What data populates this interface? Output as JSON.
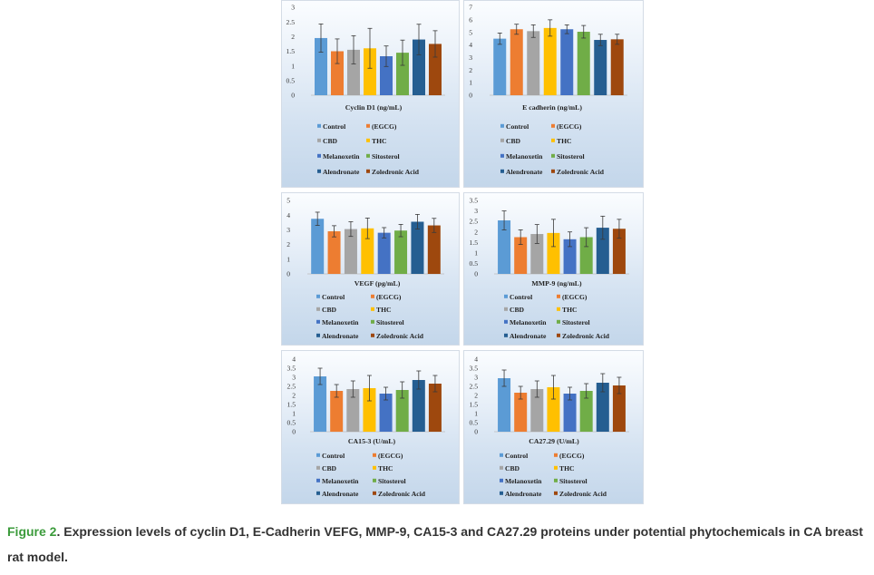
{
  "palette": [
    "#5b9bd5",
    "#ed7d31",
    "#a5a5a5",
    "#ffc000",
    "#4472c4",
    "#70ad47",
    "#255e91",
    "#9e480e"
  ],
  "chart_data": [
    {
      "type": "bar",
      "title": "Cyclin D1 (ng/mL)",
      "ylim": [
        0,
        3
      ],
      "yticks": [
        "0",
        "0.5",
        "1",
        "1.5",
        "2",
        "2.5",
        "3"
      ],
      "series": [
        {
          "name": "Control",
          "values": [
            1.95
          ],
          "errors": [
            0.48
          ]
        },
        {
          "name": "(EGCG)",
          "values": [
            1.5
          ],
          "errors": [
            0.42
          ]
        },
        {
          "name": "CBD",
          "values": [
            1.55
          ],
          "errors": [
            0.48
          ]
        },
        {
          "name": "THC",
          "values": [
            1.6
          ],
          "errors": [
            0.68
          ]
        },
        {
          "name": "Melanoxetin",
          "values": [
            1.33
          ],
          "errors": [
            0.35
          ]
        },
        {
          "name": "Sitosterol",
          "values": [
            1.45
          ],
          "errors": [
            0.43
          ]
        },
        {
          "name": "Alendronate",
          "values": [
            1.9
          ],
          "errors": [
            0.52
          ]
        },
        {
          "name": "Zoledronic Acid",
          "values": [
            1.75
          ],
          "errors": [
            0.45
          ]
        }
      ]
    },
    {
      "type": "bar",
      "title": "E cadherin (ng/mL)",
      "ylim": [
        0,
        7
      ],
      "yticks": [
        "0",
        "1",
        "2",
        "3",
        "4",
        "5",
        "6",
        "7"
      ],
      "series": [
        {
          "name": "Control",
          "values": [
            4.5
          ],
          "errors": [
            0.45
          ]
        },
        {
          "name": "(EGCG)",
          "values": [
            5.25
          ],
          "errors": [
            0.4
          ]
        },
        {
          "name": "CBD",
          "values": [
            5.1
          ],
          "errors": [
            0.5
          ]
        },
        {
          "name": "THC",
          "values": [
            5.35
          ],
          "errors": [
            0.65
          ]
        },
        {
          "name": "Melanoxetin",
          "values": [
            5.25
          ],
          "errors": [
            0.35
          ]
        },
        {
          "name": "Sitosterol",
          "values": [
            5.05
          ],
          "errors": [
            0.5
          ]
        },
        {
          "name": "Alendronate",
          "values": [
            4.4
          ],
          "errors": [
            0.45
          ]
        },
        {
          "name": "Zoledronic Acid",
          "values": [
            4.45
          ],
          "errors": [
            0.4
          ]
        }
      ]
    },
    {
      "type": "bar",
      "title": "VEGF (pg/mL)",
      "ylim": [
        0,
        5
      ],
      "yticks": [
        "0",
        "1",
        "2",
        "3",
        "4",
        "5"
      ],
      "series": [
        {
          "name": "Control",
          "values": [
            3.75
          ],
          "errors": [
            0.45
          ]
        },
        {
          "name": "(EGCG)",
          "values": [
            2.9
          ],
          "errors": [
            0.38
          ]
        },
        {
          "name": "CBD",
          "values": [
            3.05
          ],
          "errors": [
            0.5
          ]
        },
        {
          "name": "THC",
          "values": [
            3.1
          ],
          "errors": [
            0.7
          ]
        },
        {
          "name": "Melanoxetin",
          "values": [
            2.8
          ],
          "errors": [
            0.35
          ]
        },
        {
          "name": "Sitosterol",
          "values": [
            2.95
          ],
          "errors": [
            0.42
          ]
        },
        {
          "name": "Alendronate",
          "values": [
            3.55
          ],
          "errors": [
            0.5
          ]
        },
        {
          "name": "Zoledronic Acid",
          "values": [
            3.3
          ],
          "errors": [
            0.48
          ]
        }
      ]
    },
    {
      "type": "bar",
      "title": "MMP-9 (ng/mL)",
      "ylim": [
        0,
        3.5
      ],
      "yticks": [
        "0",
        "0.5",
        "1",
        "1.5",
        "2",
        "2.5",
        "3",
        "3.5"
      ],
      "series": [
        {
          "name": "Control",
          "values": [
            2.55
          ],
          "errors": [
            0.45
          ]
        },
        {
          "name": "(EGCG)",
          "values": [
            1.75
          ],
          "errors": [
            0.35
          ]
        },
        {
          "name": "CBD",
          "values": [
            1.9
          ],
          "errors": [
            0.45
          ]
        },
        {
          "name": "THC",
          "values": [
            1.95
          ],
          "errors": [
            0.65
          ]
        },
        {
          "name": "Melanoxetin",
          "values": [
            1.65
          ],
          "errors": [
            0.35
          ]
        },
        {
          "name": "Sitosterol",
          "values": [
            1.75
          ],
          "errors": [
            0.45
          ]
        },
        {
          "name": "Alendronate",
          "values": [
            2.2
          ],
          "errors": [
            0.55
          ]
        },
        {
          "name": "Zoledronic Acid",
          "values": [
            2.15
          ],
          "errors": [
            0.45
          ]
        }
      ]
    },
    {
      "type": "bar",
      "title": "CA15-3 (U/mL)",
      "ylim": [
        0,
        4
      ],
      "yticks": [
        "0",
        "0.5",
        "1",
        "1.5",
        "2",
        "2.5",
        "3",
        "3.5",
        "4"
      ],
      "series": [
        {
          "name": "Control",
          "values": [
            3.05
          ],
          "errors": [
            0.45
          ]
        },
        {
          "name": "(EGCG)",
          "values": [
            2.25
          ],
          "errors": [
            0.35
          ]
        },
        {
          "name": "CBD",
          "values": [
            2.35
          ],
          "errors": [
            0.45
          ]
        },
        {
          "name": "THC",
          "values": [
            2.4
          ],
          "errors": [
            0.7
          ]
        },
        {
          "name": "Melanoxetin",
          "values": [
            2.1
          ],
          "errors": [
            0.35
          ]
        },
        {
          "name": "Sitosterol",
          "values": [
            2.3
          ],
          "errors": [
            0.45
          ]
        },
        {
          "name": "Alendronate",
          "values": [
            2.85
          ],
          "errors": [
            0.5
          ]
        },
        {
          "name": "Zoledronic Acid",
          "values": [
            2.65
          ],
          "errors": [
            0.45
          ]
        }
      ]
    },
    {
      "type": "bar",
      "title": "CA27.29 (U/mL)",
      "ylim": [
        0,
        4
      ],
      "yticks": [
        "0",
        "0.5",
        "1",
        "1.5",
        "2",
        "2.5",
        "3",
        "3.5",
        "4"
      ],
      "series": [
        {
          "name": "Control",
          "values": [
            2.95
          ],
          "errors": [
            0.45
          ]
        },
        {
          "name": "(EGCG)",
          "values": [
            2.15
          ],
          "errors": [
            0.35
          ]
        },
        {
          "name": "CBD",
          "values": [
            2.35
          ],
          "errors": [
            0.45
          ]
        },
        {
          "name": "THC",
          "values": [
            2.45
          ],
          "errors": [
            0.65
          ]
        },
        {
          "name": "Melanoxetin",
          "values": [
            2.1
          ],
          "errors": [
            0.35
          ]
        },
        {
          "name": "Sitosterol",
          "values": [
            2.25
          ],
          "errors": [
            0.4
          ]
        },
        {
          "name": "Alendronate",
          "values": [
            2.7
          ],
          "errors": [
            0.5
          ]
        },
        {
          "name": "Zoledronic Acid",
          "values": [
            2.55
          ],
          "errors": [
            0.45
          ]
        }
      ]
    }
  ],
  "caption": {
    "label": "Figure 2",
    "text": ". Expression levels of cyclin D1, E-Cadherin VEFG, MMP-9, CA15-3 and CA27.29 proteins under potential phytochemicals in CA breast rat model."
  }
}
